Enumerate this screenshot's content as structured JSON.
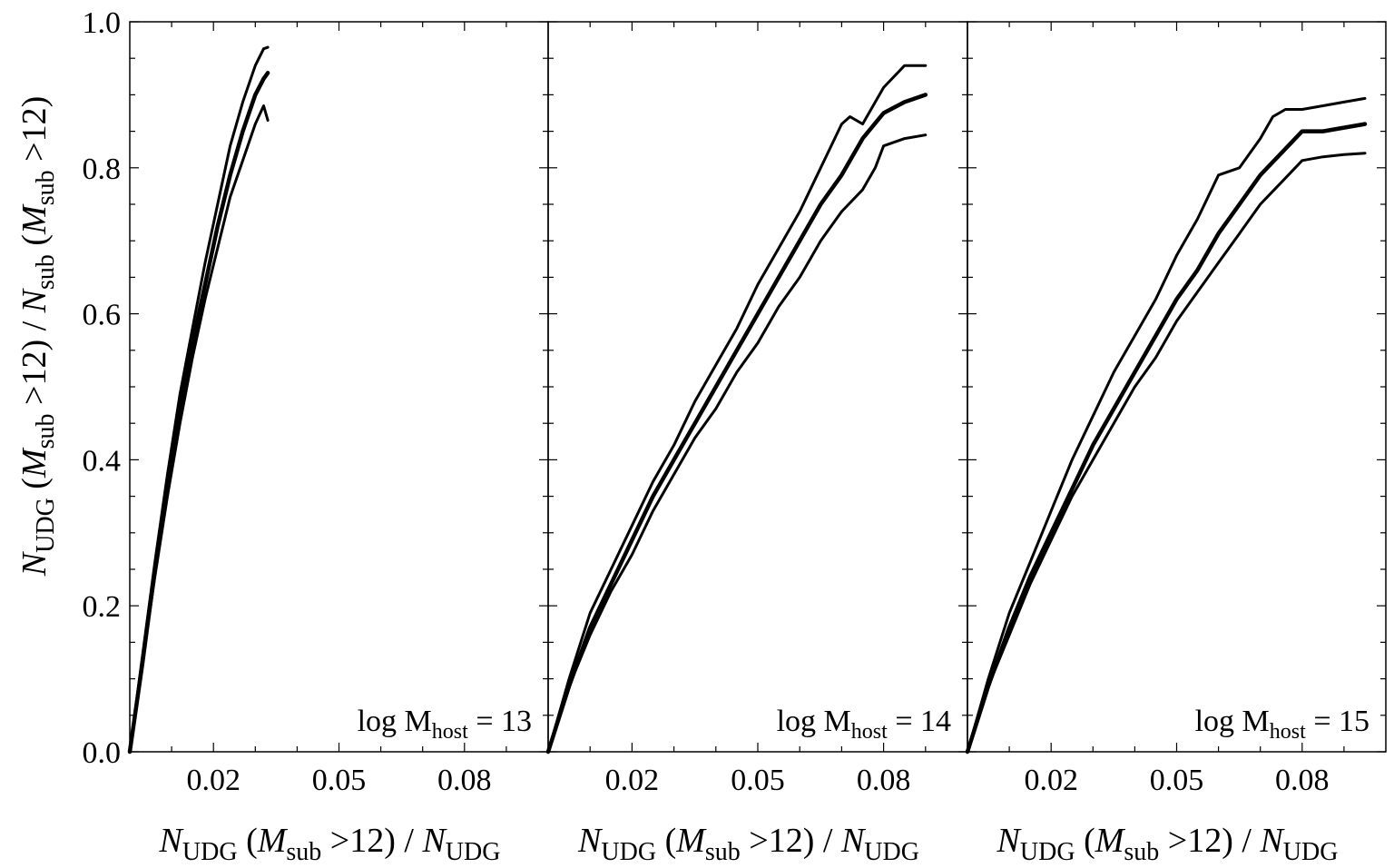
{
  "chart_data": [
    {
      "type": "line",
      "panel_label": {
        "prefix": "log M",
        "sub": "host",
        "suffix": " = 13"
      },
      "xlabel": {
        "N": "N",
        "sub1": "UDG",
        "mid": " (",
        "M": "M",
        "sub2": "sub",
        "tail": " >12) / ",
        "N2": "N",
        "sub3": "UDG"
      },
      "ylabel": {
        "N": "N",
        "sub1": "UDG",
        "mid": " (",
        "M": "M",
        "sub2": "sub",
        "tail": " >12) / ",
        "N2": "N",
        "sub3": "sub",
        "mid2": " (",
        "M2": "M",
        "sub4": "sub",
        "tail2": " >12)"
      },
      "xlim": [
        0,
        0.1
      ],
      "ylim": [
        0,
        1.0
      ],
      "xticks": [
        "0.02",
        "0.05",
        "0.08"
      ],
      "xtick_values": [
        0.02,
        0.05,
        0.08
      ],
      "yticks": [
        "0.0",
        "0.2",
        "0.4",
        "0.6",
        "0.8",
        "1.0"
      ],
      "ytick_values": [
        0,
        0.2,
        0.4,
        0.6,
        0.8,
        1.0
      ],
      "series": [
        {
          "name": "upper",
          "width": "thin",
          "x": [
            0,
            0.003,
            0.006,
            0.009,
            0.012,
            0.015,
            0.018,
            0.021,
            0.024,
            0.027,
            0.03,
            0.032,
            0.033
          ],
          "y": [
            0,
            0.13,
            0.26,
            0.38,
            0.49,
            0.58,
            0.67,
            0.75,
            0.83,
            0.89,
            0.94,
            0.963,
            0.965
          ]
        },
        {
          "name": "median",
          "width": "thick",
          "x": [
            0,
            0.003,
            0.006,
            0.009,
            0.012,
            0.015,
            0.018,
            0.021,
            0.024,
            0.027,
            0.03,
            0.032,
            0.033
          ],
          "y": [
            0,
            0.12,
            0.25,
            0.36,
            0.47,
            0.56,
            0.64,
            0.72,
            0.79,
            0.85,
            0.9,
            0.922,
            0.93
          ]
        },
        {
          "name": "lower",
          "width": "thin",
          "x": [
            0,
            0.003,
            0.006,
            0.009,
            0.012,
            0.015,
            0.018,
            0.021,
            0.024,
            0.027,
            0.03,
            0.032,
            0.033
          ],
          "y": [
            0,
            0.12,
            0.24,
            0.35,
            0.45,
            0.54,
            0.62,
            0.69,
            0.76,
            0.81,
            0.86,
            0.885,
            0.865
          ]
        }
      ]
    },
    {
      "type": "line",
      "panel_label": {
        "prefix": "log M",
        "sub": "host",
        "suffix": " = 14"
      },
      "xlabel": {
        "N": "N",
        "sub1": "UDG",
        "mid": " (",
        "M": "M",
        "sub2": "sub",
        "tail": " >12) / ",
        "N2": "N",
        "sub3": "UDG"
      },
      "xlim": [
        0,
        0.1
      ],
      "ylim": [
        0,
        1.0
      ],
      "xticks": [
        "0.02",
        "0.05",
        "0.08"
      ],
      "xtick_values": [
        0.02,
        0.05,
        0.08
      ],
      "series": [
        {
          "name": "upper",
          "width": "thin",
          "x": [
            0,
            0.005,
            0.01,
            0.015,
            0.02,
            0.025,
            0.03,
            0.035,
            0.04,
            0.045,
            0.05,
            0.055,
            0.06,
            0.065,
            0.07,
            0.072,
            0.075,
            0.08,
            0.085,
            0.09
          ],
          "y": [
            0,
            0.1,
            0.19,
            0.25,
            0.31,
            0.37,
            0.42,
            0.48,
            0.53,
            0.58,
            0.64,
            0.69,
            0.74,
            0.8,
            0.86,
            0.87,
            0.86,
            0.91,
            0.94,
            0.94
          ]
        },
        {
          "name": "median",
          "width": "thick",
          "x": [
            0,
            0.005,
            0.01,
            0.015,
            0.02,
            0.025,
            0.03,
            0.035,
            0.04,
            0.045,
            0.05,
            0.055,
            0.06,
            0.065,
            0.07,
            0.075,
            0.08,
            0.085,
            0.09
          ],
          "y": [
            0,
            0.09,
            0.17,
            0.23,
            0.29,
            0.35,
            0.4,
            0.45,
            0.5,
            0.55,
            0.6,
            0.65,
            0.7,
            0.75,
            0.79,
            0.84,
            0.875,
            0.89,
            0.9
          ]
        },
        {
          "name": "lower",
          "width": "thin",
          "x": [
            0,
            0.005,
            0.01,
            0.015,
            0.02,
            0.025,
            0.03,
            0.035,
            0.04,
            0.045,
            0.05,
            0.055,
            0.06,
            0.065,
            0.07,
            0.075,
            0.078,
            0.08,
            0.085,
            0.09
          ],
          "y": [
            0,
            0.09,
            0.16,
            0.22,
            0.27,
            0.33,
            0.38,
            0.43,
            0.47,
            0.52,
            0.56,
            0.61,
            0.65,
            0.7,
            0.74,
            0.77,
            0.8,
            0.83,
            0.84,
            0.845
          ]
        }
      ]
    },
    {
      "type": "line",
      "panel_label": {
        "prefix": "log M",
        "sub": "host",
        "suffix": " = 15"
      },
      "xlabel": {
        "N": "N",
        "sub1": "UDG",
        "mid": " (",
        "M": "M",
        "sub2": "sub",
        "tail": " >12) / ",
        "N2": "N",
        "sub3": "UDG"
      },
      "xlim": [
        0,
        0.1
      ],
      "ylim": [
        0,
        1.0
      ],
      "xticks": [
        "0.02",
        "0.05",
        "0.08"
      ],
      "xtick_values": [
        0.02,
        0.05,
        0.08
      ],
      "series": [
        {
          "name": "upper",
          "width": "thin",
          "x": [
            0,
            0.005,
            0.01,
            0.015,
            0.02,
            0.025,
            0.03,
            0.035,
            0.04,
            0.045,
            0.05,
            0.055,
            0.06,
            0.065,
            0.07,
            0.073,
            0.076,
            0.08,
            0.085,
            0.09,
            0.095
          ],
          "y": [
            0,
            0.1,
            0.19,
            0.26,
            0.33,
            0.4,
            0.46,
            0.52,
            0.57,
            0.62,
            0.68,
            0.73,
            0.79,
            0.8,
            0.84,
            0.87,
            0.88,
            0.88,
            0.885,
            0.89,
            0.895
          ]
        },
        {
          "name": "median",
          "width": "thick",
          "x": [
            0,
            0.005,
            0.01,
            0.015,
            0.02,
            0.025,
            0.03,
            0.035,
            0.04,
            0.045,
            0.05,
            0.055,
            0.06,
            0.065,
            0.07,
            0.075,
            0.08,
            0.085,
            0.09,
            0.095
          ],
          "y": [
            0,
            0.09,
            0.17,
            0.24,
            0.3,
            0.36,
            0.42,
            0.47,
            0.52,
            0.57,
            0.62,
            0.66,
            0.71,
            0.75,
            0.79,
            0.82,
            0.85,
            0.85,
            0.855,
            0.86
          ]
        },
        {
          "name": "lower",
          "width": "thin",
          "x": [
            0,
            0.005,
            0.01,
            0.015,
            0.02,
            0.025,
            0.03,
            0.035,
            0.04,
            0.045,
            0.05,
            0.055,
            0.06,
            0.065,
            0.07,
            0.075,
            0.08,
            0.085,
            0.09,
            0.095
          ],
          "y": [
            0,
            0.09,
            0.16,
            0.23,
            0.29,
            0.35,
            0.4,
            0.45,
            0.5,
            0.54,
            0.59,
            0.63,
            0.67,
            0.71,
            0.75,
            0.78,
            0.81,
            0.815,
            0.818,
            0.82
          ]
        }
      ]
    }
  ]
}
